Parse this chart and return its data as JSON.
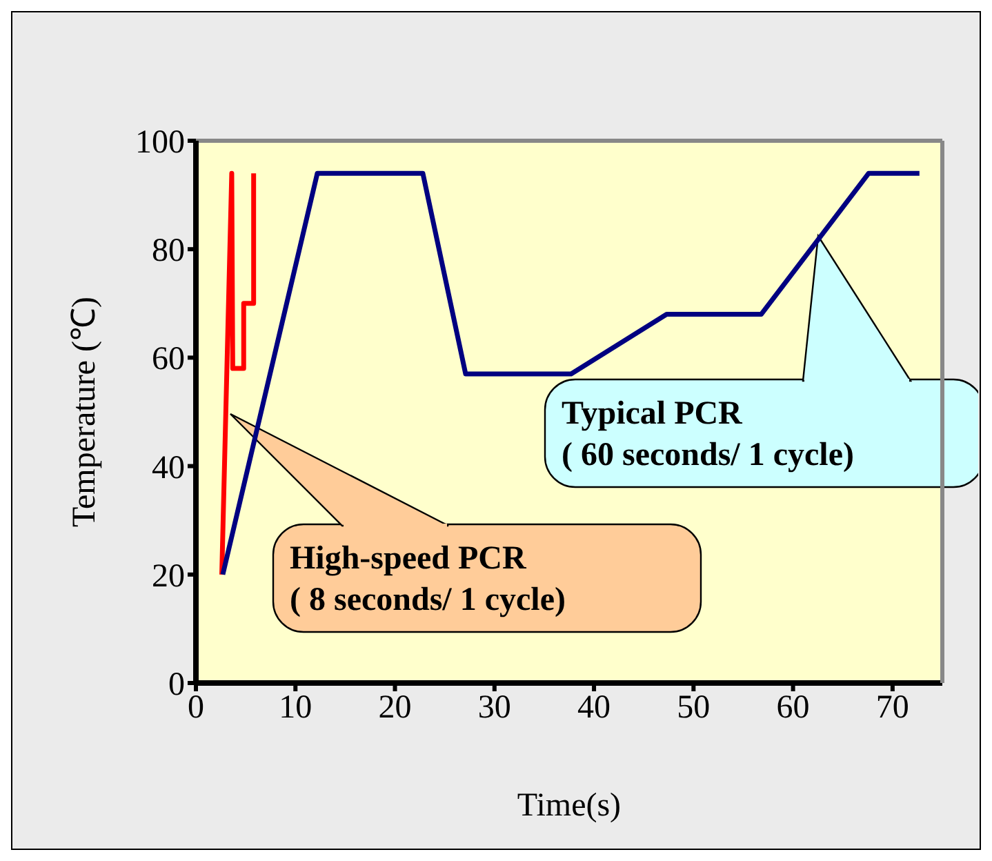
{
  "chart_data": {
    "type": "line",
    "xlabel": "Time(s)",
    "ylabel": "Temperature (℃)",
    "xlim": [
      0,
      75
    ],
    "xticks": [
      0,
      10,
      20,
      30,
      40,
      50,
      60,
      70
    ],
    "ylim": [
      0,
      100
    ],
    "yticks": [
      0,
      20,
      40,
      60,
      80,
      100
    ],
    "series": [
      {
        "color": "#ff0000",
        "x": [
          2.6,
          3.6,
          3.7,
          4.8,
          4.8,
          5.8,
          5.8
        ],
        "values": [
          20,
          94,
          58,
          58,
          70,
          70,
          94
        ]
      },
      {
        "color": "#000080",
        "x": [
          2.7,
          12.2,
          22.8,
          27.1,
          37.7,
          47.3,
          56.8,
          67.6,
          72.7
        ],
        "values": [
          20,
          94,
          94,
          57,
          57,
          68,
          68,
          94,
          94
        ]
      }
    ],
    "annotations": [
      "High-speed PCR\n( 8 seconds/ 1 cycle)",
      "Typical PCR\n( 60 seconds/ 1 cycle)"
    ]
  }
}
